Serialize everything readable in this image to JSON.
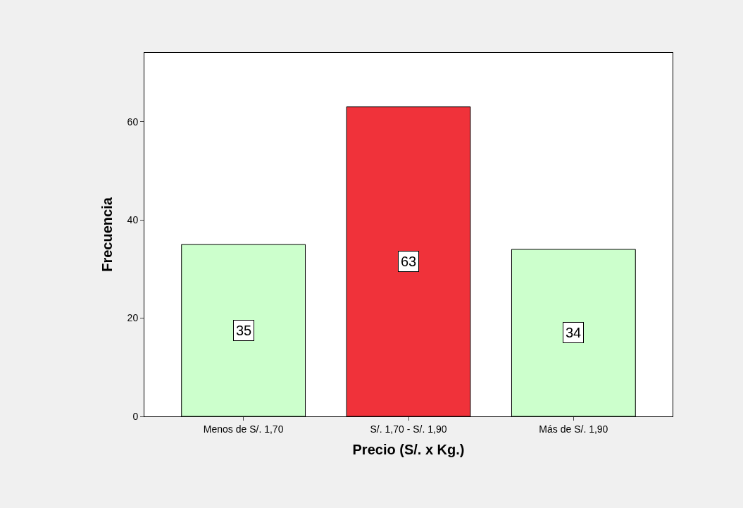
{
  "chart_data": {
    "type": "bar",
    "xlabel": "Precio (S/. x Kg.)",
    "ylabel": "Frecuencia",
    "categories": [
      "Menos de S/. 1,70",
      "S/. 1,70 - S/. 1,90",
      "Más de S/. 1,90"
    ],
    "values": [
      35,
      63,
      34
    ],
    "colors": [
      "#ccffcc",
      "#f0323a",
      "#ccffcc"
    ],
    "ylim": [
      0,
      74
    ],
    "yticks": [
      0,
      20,
      40,
      60
    ],
    "data_labels": true
  }
}
